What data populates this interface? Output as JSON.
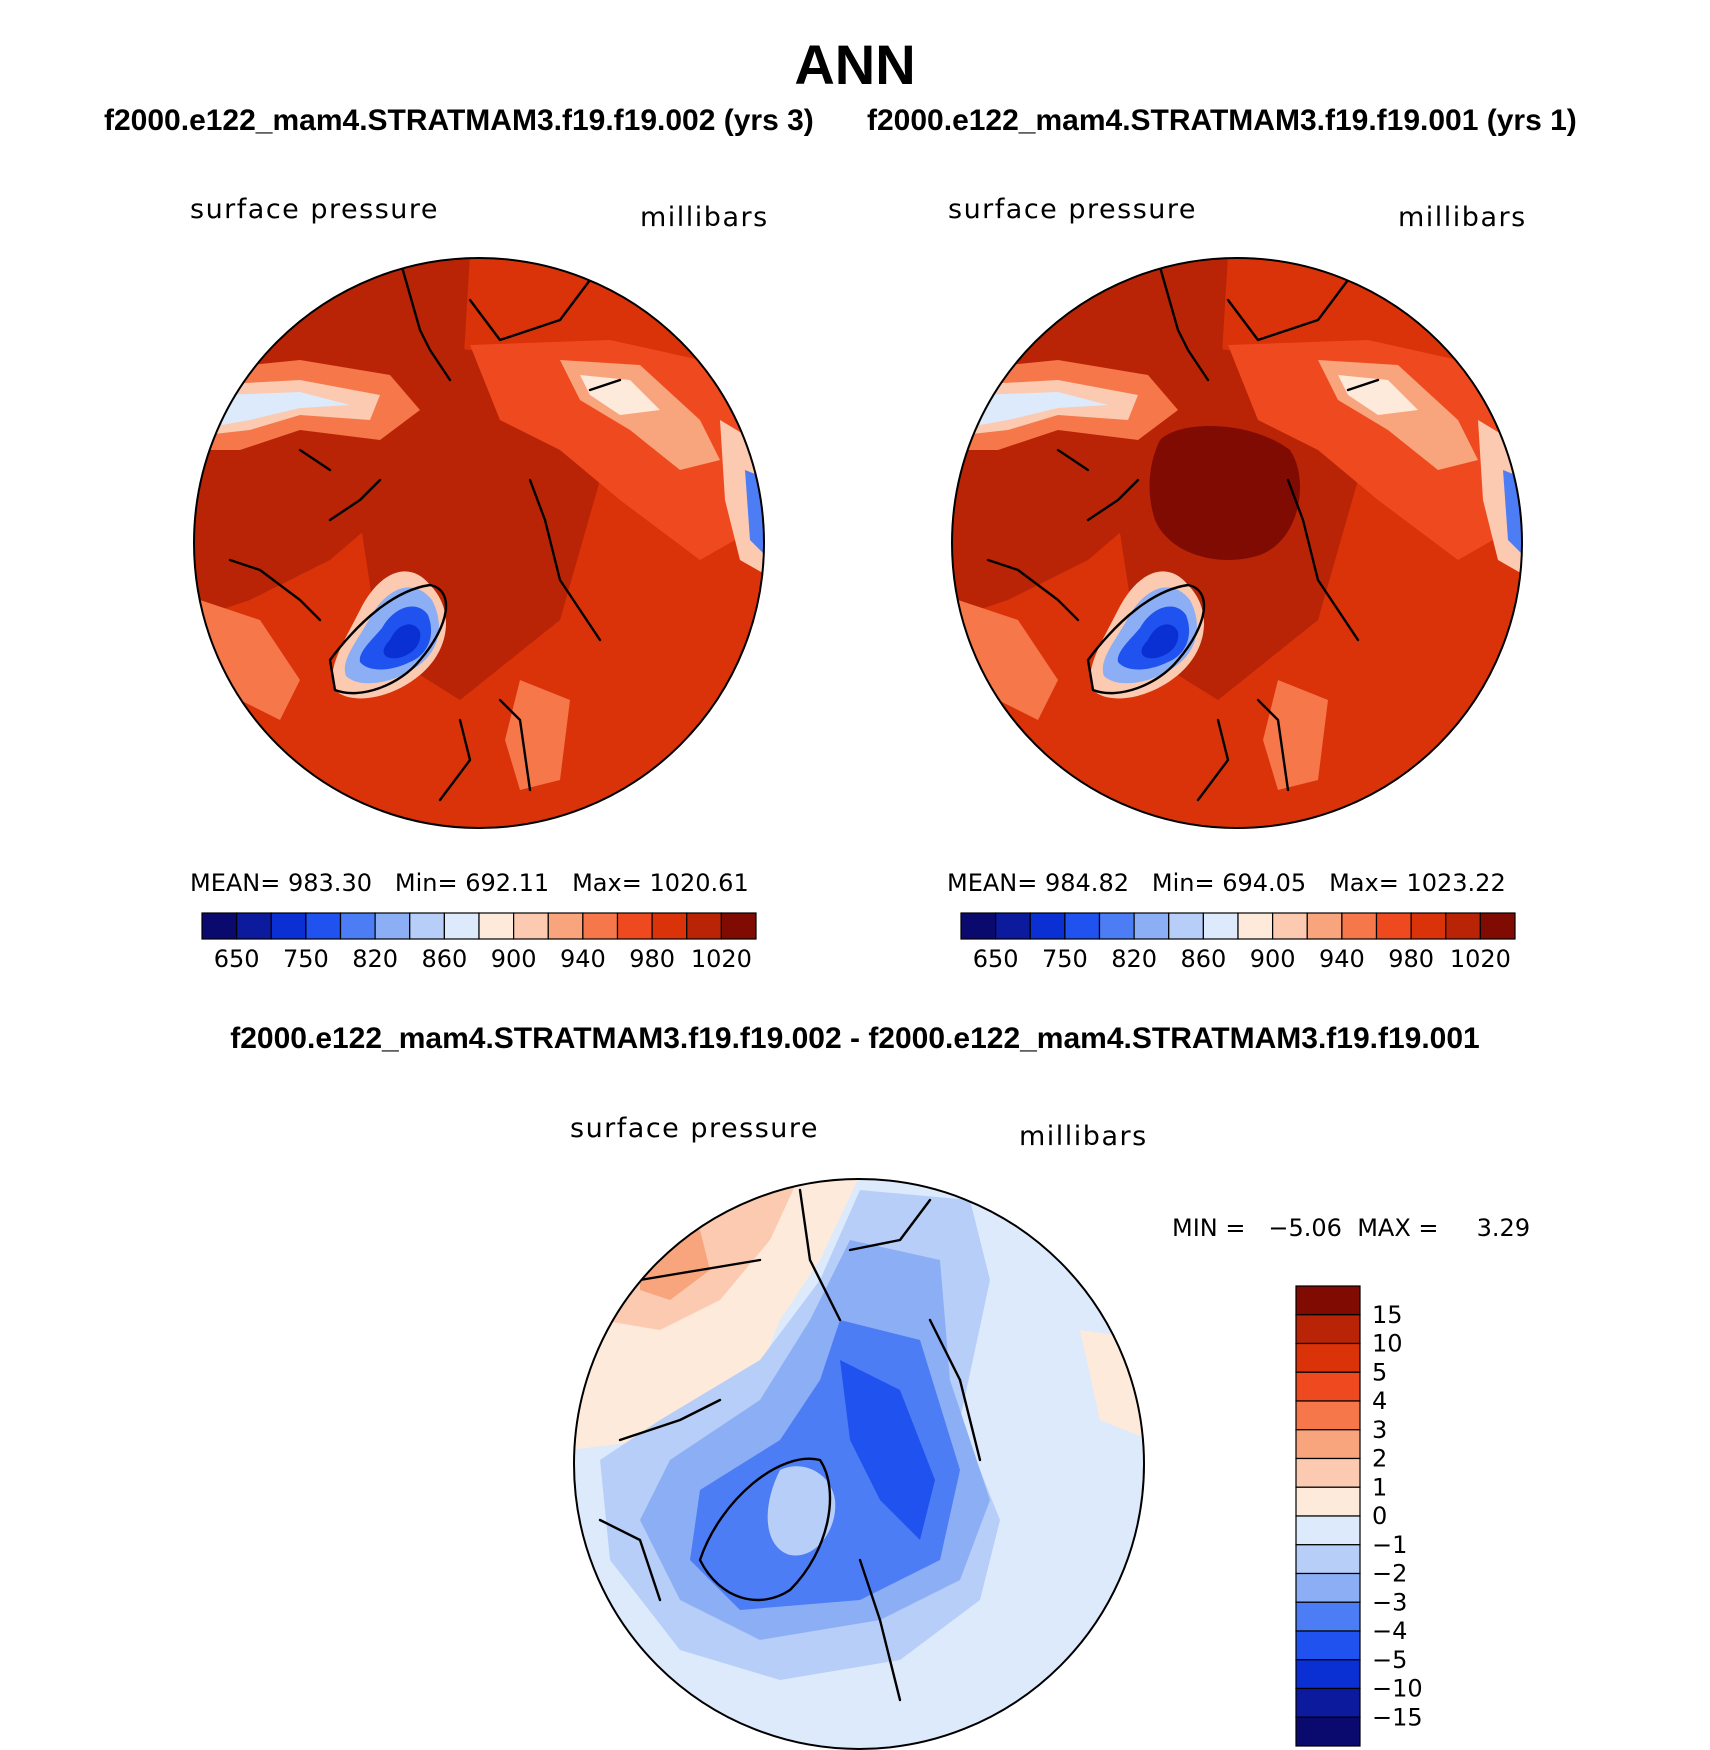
{
  "header": {
    "title": "ANN",
    "case_left": "f2000.e122_mam4.STRATMAM3.f19.f19.002 (yrs 3)",
    "case_right": "f2000.e122_mam4.STRATMAM3.f19.f19.001 (yrs 1)",
    "diff_title": "f2000.e122_mam4.STRATMAM3.f19.f19.002 - f2000.e122_mam4.STRATMAM3.f19.f19.001"
  },
  "panels": [
    {
      "variable": "surface pressure",
      "units": "millibars",
      "stats": {
        "mean_label": "MEAN=",
        "mean": "983.30",
        "min_label": "Min=",
        "min": "692.11",
        "max_label": "Max=",
        "max": "1020.61"
      }
    },
    {
      "variable": "surface pressure",
      "units": "millibars",
      "stats": {
        "mean_label": "MEAN=",
        "mean": "984.82",
        "min_label": "Min=",
        "min": "694.05",
        "max_label": "Max=",
        "max": "1023.22"
      }
    }
  ],
  "diff_panel": {
    "variable": "surface pressure",
    "units": "millibars",
    "min_label": "MIN =",
    "min": "−5.06",
    "max_label": "MAX =",
    "max": "3.29"
  },
  "colorbar_abs": {
    "colors": [
      "#0a0a6e",
      "#0c1a9e",
      "#0a2fd2",
      "#1f52ee",
      "#4d7df5",
      "#8caef5",
      "#b7cff8",
      "#dceafc",
      "#fdeadb",
      "#fbcab0",
      "#f8a47c",
      "#f5774a",
      "#ef4a1f",
      "#da3209",
      "#b82405",
      "#7f0b03"
    ],
    "ticks": [
      "650",
      "750",
      "820",
      "860",
      "900",
      "940",
      "980",
      "1020"
    ]
  },
  "colorbar_diff": {
    "colors": [
      "#7f0b03",
      "#b82405",
      "#da3209",
      "#ef4a1f",
      "#f5774a",
      "#f8a47c",
      "#fbcab0",
      "#fdeadb",
      "#dceafc",
      "#b7cff8",
      "#8caef5",
      "#4d7df5",
      "#1f52ee",
      "#0a2fd2",
      "#0c1a9e",
      "#0a0a6e"
    ],
    "ticks": [
      "15",
      "10",
      "5",
      "4",
      "3",
      "2",
      "1",
      "0",
      "−1",
      "−2",
      "−3",
      "−4",
      "−5",
      "−10",
      "−15"
    ]
  },
  "colors": {
    "land_low": "#0a2fd2",
    "base_field": "#da3209",
    "diff_base": "#dceafc"
  }
}
